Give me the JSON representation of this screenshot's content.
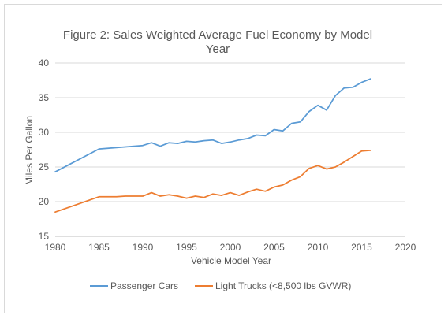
{
  "chart_data": {
    "type": "line",
    "title_line1": "Figure 2: Sales Weighted Average Fuel Economy by Model",
    "title_line2": "Year",
    "xlabel": "Vehicle Model Year",
    "ylabel": "Miles Per Gallon",
    "xlim": [
      1980,
      2020
    ],
    "ylim": [
      15,
      40
    ],
    "xticks": [
      1980,
      1985,
      1990,
      1995,
      2000,
      2005,
      2010,
      2015,
      2020
    ],
    "yticks": [
      15,
      20,
      25,
      30,
      35,
      40
    ],
    "grid": true,
    "legend_position": "bottom",
    "series": [
      {
        "name": "Passenger Cars",
        "color": "#5b9bd5",
        "points": [
          [
            1980,
            24.3
          ],
          [
            1985,
            27.6
          ],
          [
            1986,
            27.7
          ],
          [
            1987,
            27.8
          ],
          [
            1988,
            27.9
          ],
          [
            1989,
            28.0
          ],
          [
            1990,
            28.1
          ],
          [
            1991,
            28.5
          ],
          [
            1992,
            28.0
          ],
          [
            1993,
            28.5
          ],
          [
            1994,
            28.4
          ],
          [
            1995,
            28.7
          ],
          [
            1996,
            28.6
          ],
          [
            1997,
            28.8
          ],
          [
            1998,
            28.9
          ],
          [
            1999,
            28.4
          ],
          [
            2000,
            28.6
          ],
          [
            2001,
            28.9
          ],
          [
            2002,
            29.1
          ],
          [
            2003,
            29.6
          ],
          [
            2004,
            29.5
          ],
          [
            2005,
            30.4
          ],
          [
            2006,
            30.2
          ],
          [
            2007,
            31.3
          ],
          [
            2008,
            31.5
          ],
          [
            2009,
            33.0
          ],
          [
            2010,
            33.9
          ],
          [
            2011,
            33.2
          ],
          [
            2012,
            35.3
          ],
          [
            2013,
            36.4
          ],
          [
            2014,
            36.5
          ],
          [
            2015,
            37.2
          ],
          [
            2016,
            37.7
          ]
        ]
      },
      {
        "name": "Light Trucks (<8,500 lbs GVWR)",
        "color": "#ed7d31",
        "points": [
          [
            1980,
            18.5
          ],
          [
            1985,
            20.7
          ],
          [
            1986,
            20.7
          ],
          [
            1987,
            20.7
          ],
          [
            1988,
            20.8
          ],
          [
            1989,
            20.8
          ],
          [
            1990,
            20.8
          ],
          [
            1991,
            21.3
          ],
          [
            1992,
            20.8
          ],
          [
            1993,
            21.0
          ],
          [
            1994,
            20.8
          ],
          [
            1995,
            20.5
          ],
          [
            1996,
            20.8
          ],
          [
            1997,
            20.6
          ],
          [
            1998,
            21.1
          ],
          [
            1999,
            20.9
          ],
          [
            2000,
            21.3
          ],
          [
            2001,
            20.9
          ],
          [
            2002,
            21.4
          ],
          [
            2003,
            21.8
          ],
          [
            2004,
            21.5
          ],
          [
            2005,
            22.1
          ],
          [
            2006,
            22.4
          ],
          [
            2007,
            23.1
          ],
          [
            2008,
            23.6
          ],
          [
            2009,
            24.8
          ],
          [
            2010,
            25.2
          ],
          [
            2011,
            24.7
          ],
          [
            2012,
            25.0
          ],
          [
            2013,
            25.7
          ],
          [
            2014,
            26.5
          ],
          [
            2015,
            27.3
          ],
          [
            2016,
            27.4
          ]
        ]
      }
    ]
  }
}
